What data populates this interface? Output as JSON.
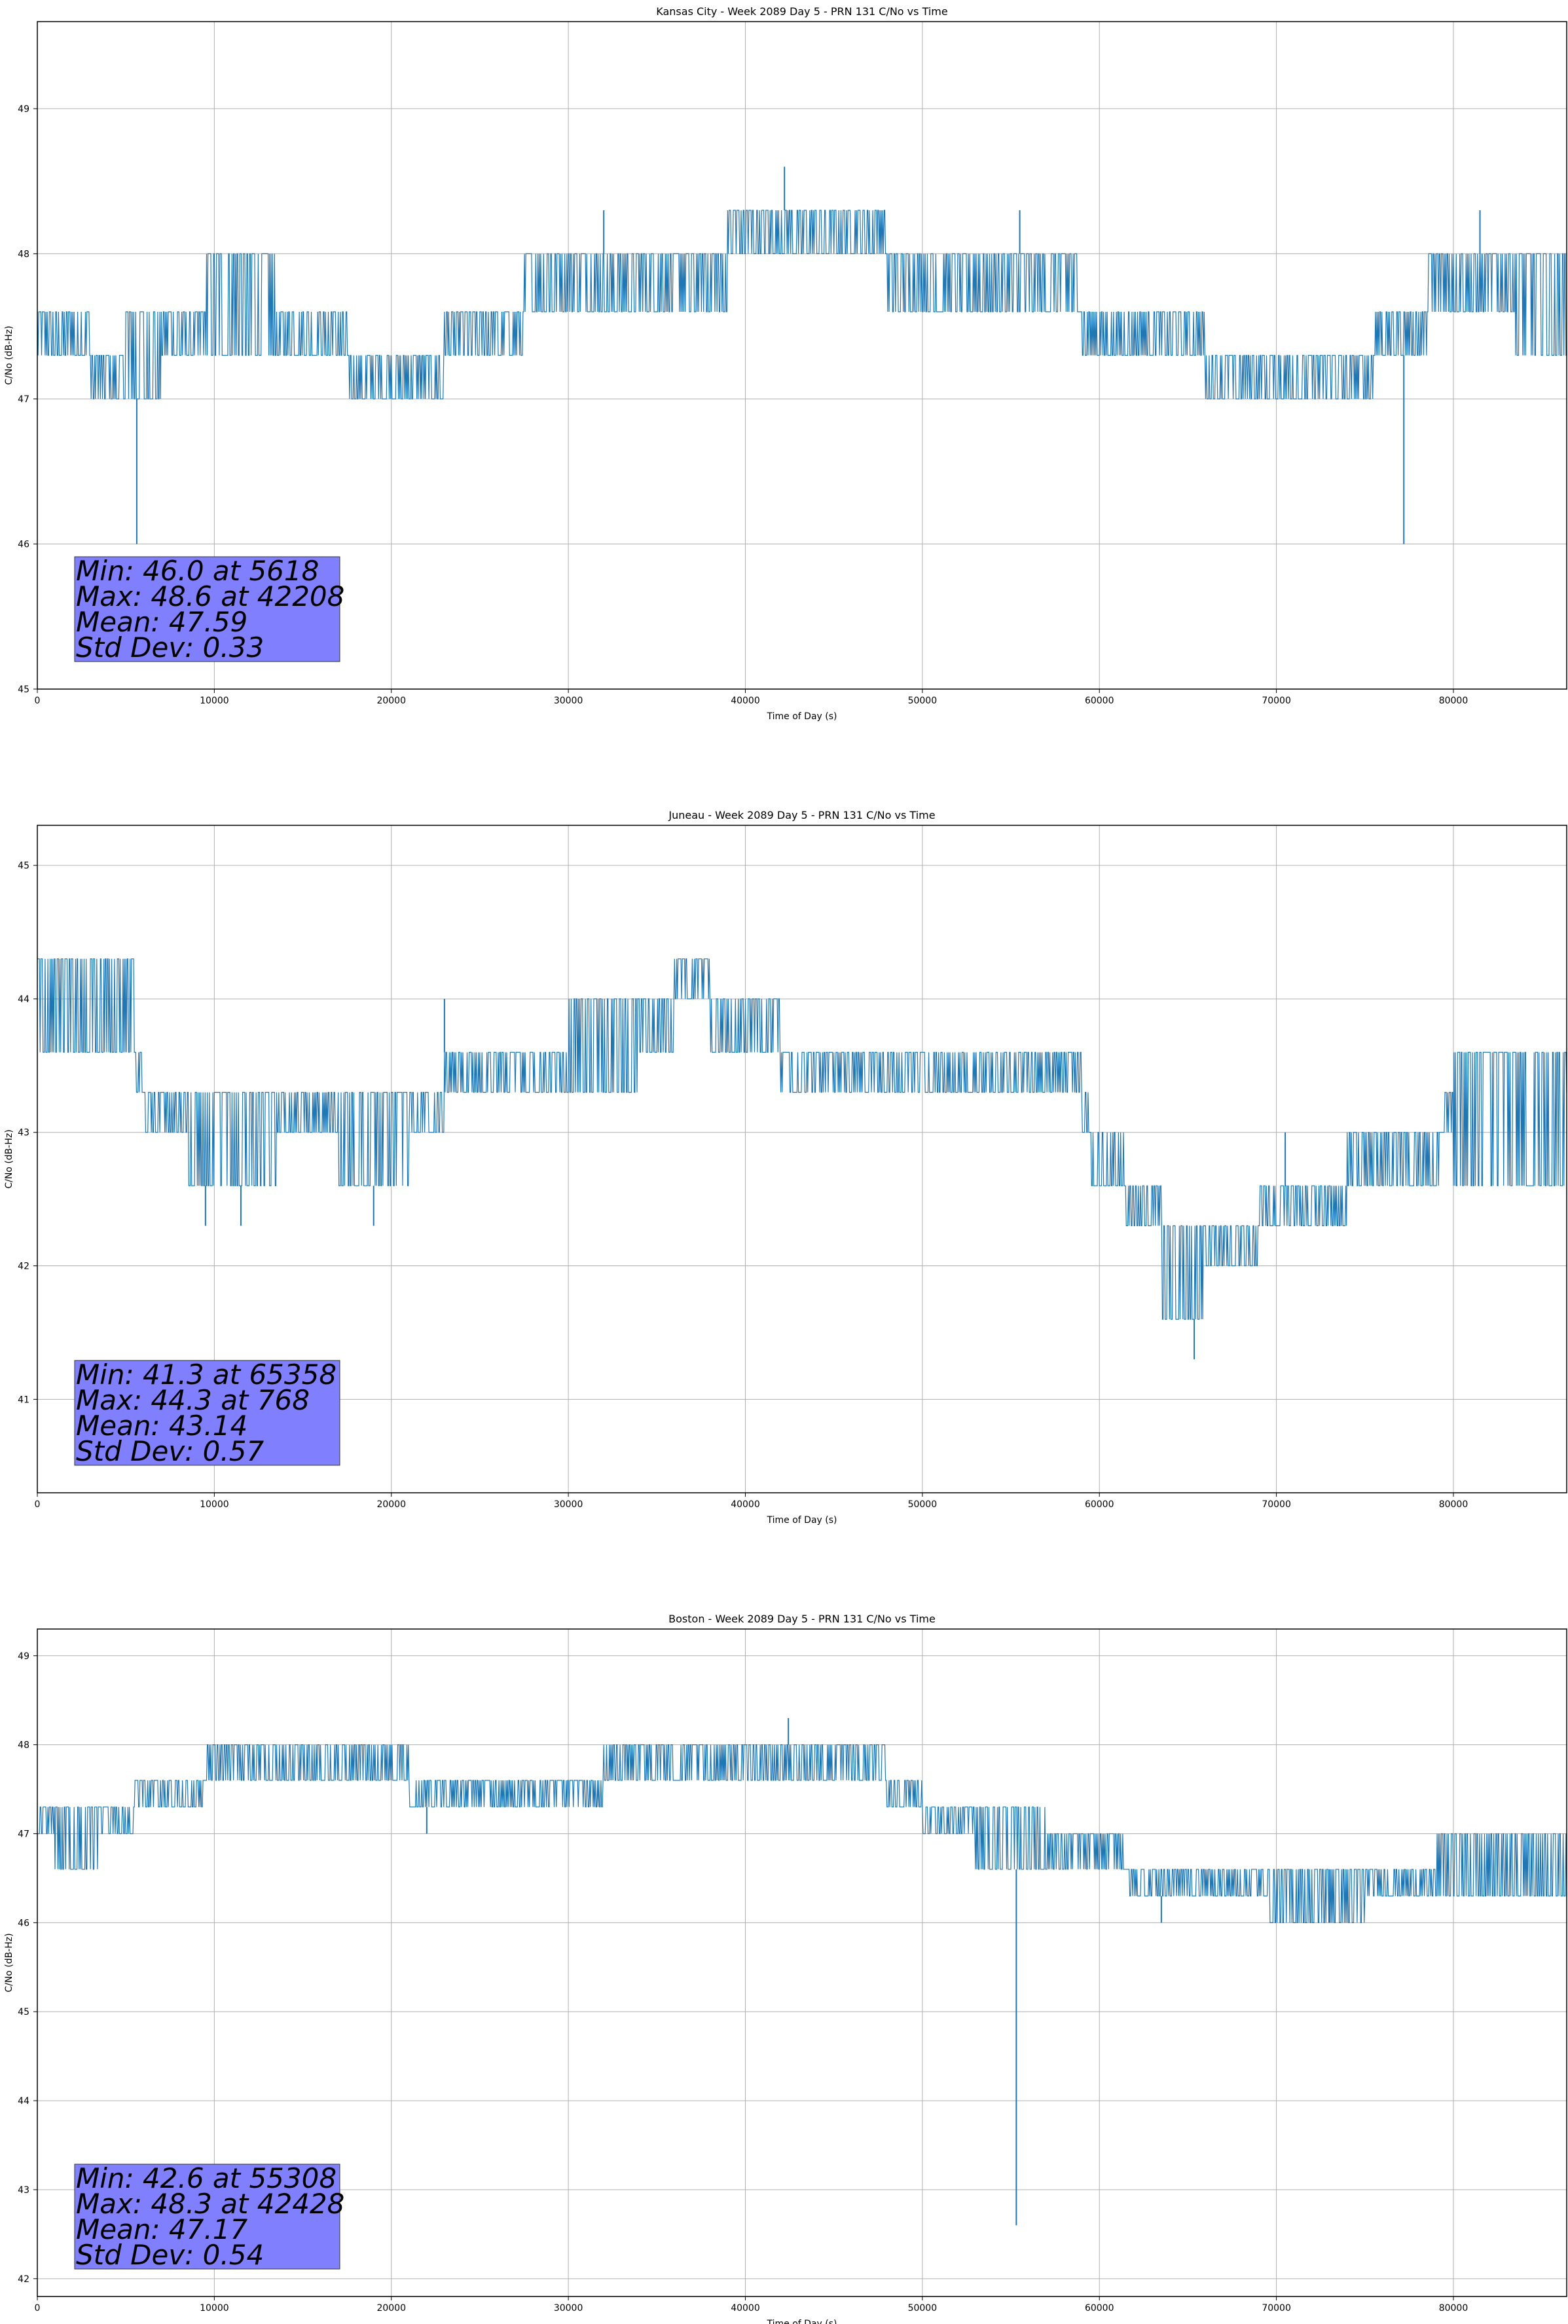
{
  "colors": {
    "line": "#1f77b4",
    "grid": "#b0b0b0",
    "stats_box": "#8080ff",
    "axes": "#000000"
  },
  "chart_data": [
    {
      "type": "line",
      "title": "Kansas City - Week 2089 Day 5 - PRN 131 C/No vs Time",
      "xlabel": "Time of Day (s)",
      "ylabel": "C/No (dB-Hz)",
      "xlim": [
        0,
        86400
      ],
      "ylim": [
        45,
        49.6
      ],
      "xticks": [
        0,
        10000,
        20000,
        30000,
        40000,
        50000,
        60000,
        70000,
        80000
      ],
      "yticks": [
        45,
        46,
        47,
        48,
        49
      ],
      "grid": true,
      "series": [
        {
          "name": "C/No",
          "segments": [
            [
              0,
              47.3,
              47.6
            ],
            [
              3000,
              47.0,
              47.3
            ],
            [
              5000,
              47.0,
              47.6
            ],
            [
              7000,
              47.3,
              47.6
            ],
            [
              9500,
              47.3,
              48.0
            ],
            [
              13500,
              47.3,
              47.6
            ],
            [
              17500,
              47.0,
              47.3
            ],
            [
              23000,
              47.3,
              47.6
            ],
            [
              27500,
              47.6,
              48.0
            ],
            [
              39000,
              48.0,
              48.3
            ],
            [
              48000,
              47.6,
              48.0
            ],
            [
              59000,
              47.3,
              47.6
            ],
            [
              66000,
              47.0,
              47.3
            ],
            [
              75500,
              47.3,
              47.6
            ],
            [
              78500,
              47.6,
              48.0
            ],
            [
              83500,
              47.3,
              48.0
            ],
            [
              86400,
              47.3,
              47.6
            ]
          ],
          "spikes": [
            [
              5618,
              46.0
            ],
            [
              42208,
              48.6
            ],
            [
              77200,
              46.0
            ],
            [
              81500,
              48.3
            ],
            [
              32000,
              48.3
            ],
            [
              55500,
              48.3
            ]
          ]
        }
      ],
      "stats": [
        "Min: 46.0 at 5618",
        "Max: 48.6 at 42208",
        "Mean: 47.59",
        "Std Dev: 0.33"
      ]
    },
    {
      "type": "line",
      "title": "Juneau - Week 2089 Day 5 - PRN 131 C/No vs Time",
      "xlabel": "Time of Day (s)",
      "ylabel": "C/No (dB-Hz)",
      "xlim": [
        0,
        86400
      ],
      "ylim": [
        40.3,
        45.3
      ],
      "xticks": [
        0,
        10000,
        20000,
        30000,
        40000,
        50000,
        60000,
        70000,
        80000
      ],
      "yticks": [
        41,
        42,
        43,
        44,
        45
      ],
      "grid": true,
      "series": [
        {
          "name": "C/No",
          "segments": [
            [
              0,
              43.6,
              44.3
            ],
            [
              5500,
              43.3,
              43.6
            ],
            [
              6000,
              43.0,
              43.3
            ],
            [
              8500,
              42.6,
              43.3
            ],
            [
              13500,
              43.0,
              43.3
            ],
            [
              17000,
              42.6,
              43.3
            ],
            [
              21000,
              43.0,
              43.3
            ],
            [
              23000,
              43.3,
              43.6
            ],
            [
              30000,
              43.3,
              44.0
            ],
            [
              34000,
              43.6,
              44.0
            ],
            [
              36000,
              44.0,
              44.3
            ],
            [
              38000,
              43.6,
              44.0
            ],
            [
              42000,
              43.3,
              43.6
            ],
            [
              50000,
              43.3,
              43.6
            ],
            [
              59000,
              43.0,
              43.3
            ],
            [
              59500,
              42.6,
              43.0
            ],
            [
              61500,
              42.3,
              42.6
            ],
            [
              63500,
              41.6,
              42.3
            ],
            [
              66000,
              42.0,
              42.3
            ],
            [
              69000,
              42.3,
              42.6
            ],
            [
              74000,
              42.6,
              43.0
            ],
            [
              79500,
              43.0,
              43.3
            ],
            [
              80000,
              42.6,
              43.6
            ],
            [
              86400,
              43.0,
              43.3
            ]
          ],
          "spikes": [
            [
              768,
              44.3
            ],
            [
              65358,
              41.3
            ],
            [
              9500,
              42.3
            ],
            [
              11500,
              42.3
            ],
            [
              19000,
              42.3
            ],
            [
              23000,
              44.0
            ],
            [
              70500,
              43.0
            ]
          ]
        }
      ],
      "stats": [
        "Min: 41.3 at 65358",
        "Max: 44.3 at 768",
        "Mean: 43.14",
        "Std Dev: 0.57"
      ]
    },
    {
      "type": "line",
      "title": "Boston - Week 2089 Day 5 - PRN 131 C/No vs Time",
      "xlabel": "Time of Day (s)",
      "ylabel": "C/No (dB-Hz)",
      "xlim": [
        0,
        86400
      ],
      "ylim": [
        41.8,
        49.3
      ],
      "xticks": [
        0,
        10000,
        20000,
        30000,
        40000,
        50000,
        60000,
        70000,
        80000
      ],
      "yticks": [
        42,
        43,
        44,
        45,
        46,
        47,
        48,
        49
      ],
      "grid": true,
      "series": [
        {
          "name": "C/No",
          "segments": [
            [
              0,
              47.0,
              47.3
            ],
            [
              1000,
              46.6,
              47.3
            ],
            [
              3500,
              47.0,
              47.3
            ],
            [
              5500,
              47.3,
              47.6
            ],
            [
              9500,
              47.6,
              48.0
            ],
            [
              21000,
              47.3,
              47.6
            ],
            [
              27000,
              47.3,
              47.6
            ],
            [
              32000,
              47.6,
              48.0
            ],
            [
              48000,
              47.3,
              47.6
            ],
            [
              50000,
              47.0,
              47.3
            ],
            [
              53000,
              46.6,
              47.3
            ],
            [
              57000,
              46.6,
              47.0
            ],
            [
              61500,
              46.3,
              46.6
            ],
            [
              69500,
              46.0,
              46.6
            ],
            [
              75000,
              46.3,
              46.6
            ],
            [
              79000,
              46.3,
              47.0
            ],
            [
              86400,
              46.3,
              47.0
            ]
          ],
          "spikes": [
            [
              55308,
              42.6
            ],
            [
              42428,
              48.3
            ],
            [
              22000,
              47.0
            ],
            [
              63500,
              46.0
            ],
            [
              73000,
              46.0
            ]
          ]
        }
      ],
      "stats": [
        "Min: 42.6 at 55308",
        "Max: 48.3 at 42428",
        "Mean: 47.17",
        "Std Dev: 0.54"
      ]
    }
  ]
}
